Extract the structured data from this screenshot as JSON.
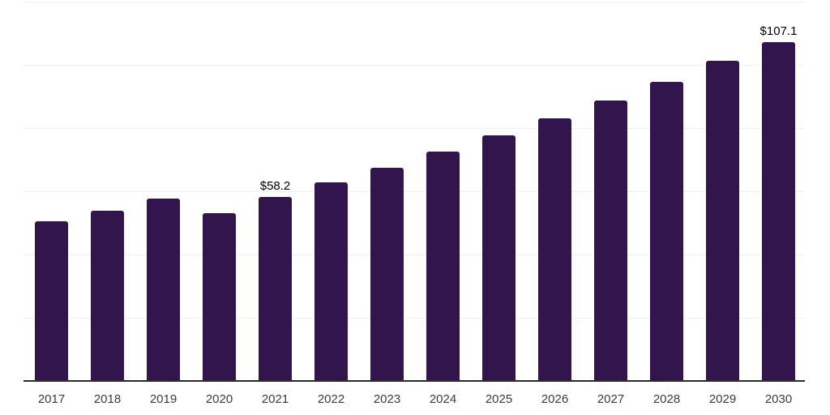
{
  "chart": {
    "background": "#ffffff",
    "bar_color": "#32154d",
    "axis_line_color": "#2b2b2b",
    "gridline_color": "#f1f1f4",
    "data_label_color": "#000000",
    "tick_label_color": "#3c3c3c"
  },
  "chart_data": {
    "type": "bar",
    "title": "",
    "xlabel": "",
    "ylabel": "",
    "categories": [
      "2017",
      "2018",
      "2019",
      "2020",
      "2021",
      "2022",
      "2023",
      "2024",
      "2025",
      "2026",
      "2027",
      "2028",
      "2029",
      "2030"
    ],
    "values": [
      50.6,
      53.9,
      57.8,
      53.2,
      58.2,
      62.9,
      67.4,
      72.5,
      77.7,
      83.2,
      88.7,
      94.6,
      101.2,
      107.1
    ],
    "data_labels": [
      null,
      null,
      null,
      null,
      "$58.2",
      null,
      null,
      null,
      null,
      null,
      null,
      null,
      null,
      "$107.1"
    ],
    "ylim": [
      0,
      120
    ],
    "gridline_values": [
      20,
      40,
      60,
      80,
      100,
      120
    ],
    "grid": true,
    "legend": false,
    "y_axis_tick_labels_visible": false
  }
}
